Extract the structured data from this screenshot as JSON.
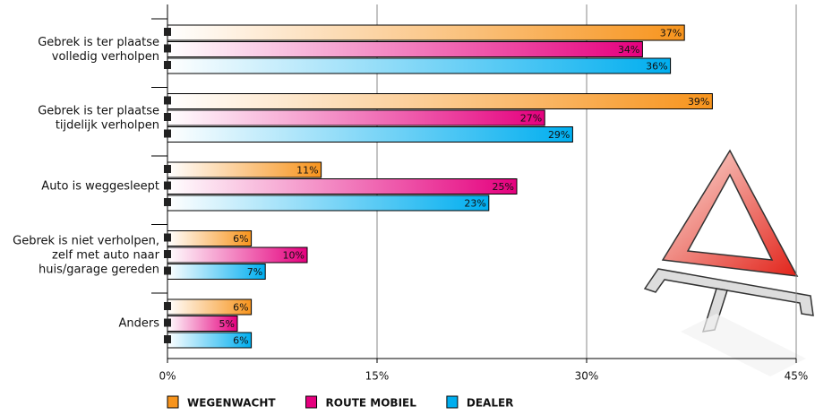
{
  "chart_data": {
    "type": "bar",
    "orientation": "horizontal",
    "categories": [
      "Gebrek is ter plaatse\nvolledig verholpen",
      "Gebrek is ter plaatse\ntijdelijk verholpen",
      "Auto is weggesleept",
      "Gebrek is niet verholpen,\nzelf met auto naar\nhuis/garage gereden",
      "Anders"
    ],
    "series": [
      {
        "name": "WEGENWACHT",
        "color": "#f7941d",
        "values": [
          37,
          39,
          11,
          6,
          6
        ],
        "value_labels": [
          "37%",
          "39%",
          "11%",
          "6%",
          "6%"
        ]
      },
      {
        "name": "ROUTE MOBIEL",
        "color": "#e5007e",
        "values": [
          34,
          27,
          25,
          10,
          5
        ],
        "value_labels": [
          "34%",
          "27%",
          "25%",
          "10%",
          "5%"
        ]
      },
      {
        "name": "DEALER",
        "color": "#00aeef",
        "values": [
          36,
          29,
          23,
          7,
          6
        ],
        "value_labels": [
          "36%",
          "29%",
          "23%",
          "7%",
          "6%"
        ]
      }
    ],
    "xlim": [
      0,
      45
    ],
    "xticks": [
      {
        "value": 0,
        "label": "0%"
      },
      {
        "value": 15,
        "label": "15%"
      },
      {
        "value": 30,
        "label": "30%"
      },
      {
        "value": 45,
        "label": "45%"
      }
    ],
    "grid": true,
    "legend": "bottom"
  }
}
